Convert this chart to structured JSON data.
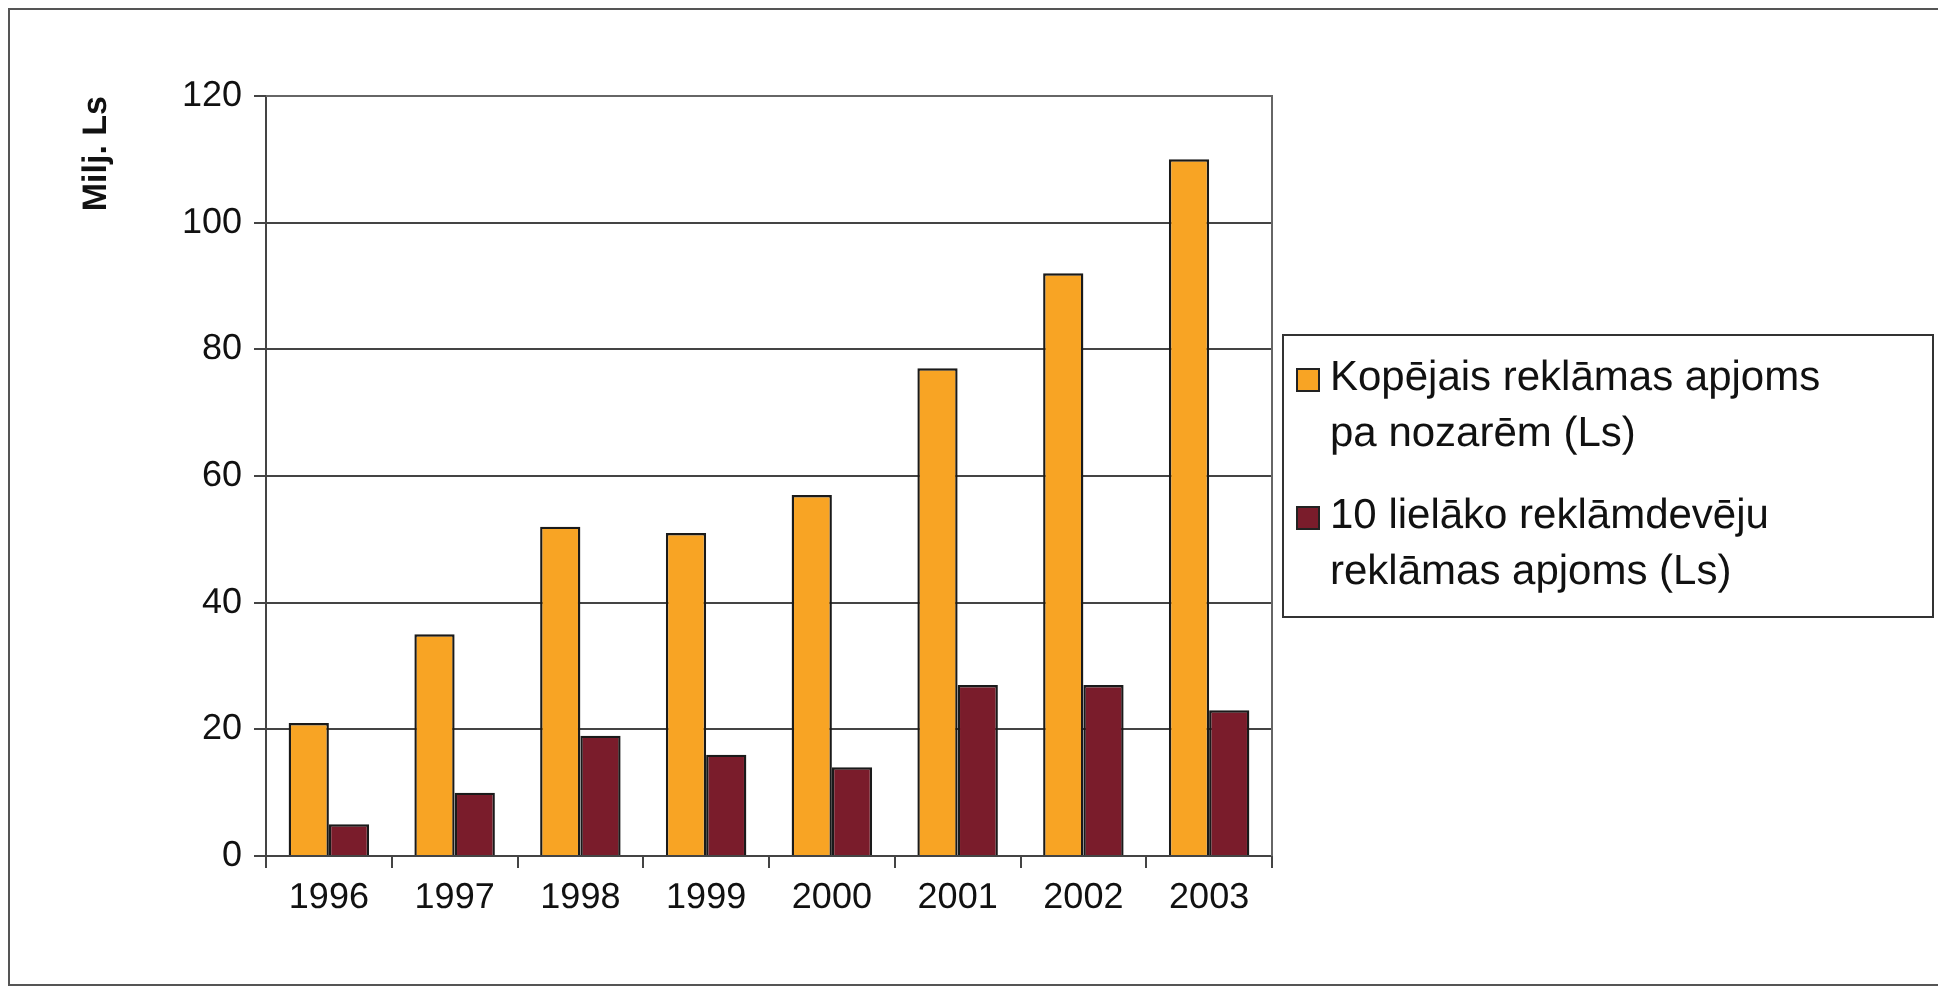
{
  "chart_data": {
    "type": "bar",
    "ylabel": "Milj. Ls",
    "categories": [
      "1996",
      "1997",
      "1998",
      "1999",
      "2000",
      "2001",
      "2002",
      "2003"
    ],
    "series": [
      {
        "name": "Kopējais reklāmas apjoms pa nozarēm (Ls)",
        "color": "#f8a424",
        "values": [
          21,
          35,
          52,
          51,
          57,
          77,
          92,
          110
        ]
      },
      {
        "name": "10 lielāko reklāmdevēju reklāmas apjoms (Ls)",
        "color": "#7a1c2b",
        "values": [
          5,
          10,
          19,
          16,
          14,
          27,
          27,
          23
        ]
      }
    ],
    "ylim": [
      0,
      120
    ],
    "yticks": [
      0,
      20,
      40,
      60,
      80,
      100,
      120
    ],
    "grid": "y",
    "legend": "right"
  }
}
